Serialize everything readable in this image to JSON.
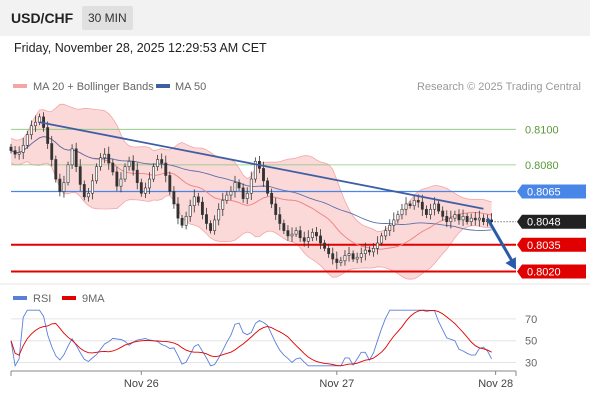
{
  "header": {
    "symbol": "USD/CHF",
    "timeframe": "30 MIN",
    "datetime": "Friday, November 28, 2025 12:29:53 AM CET"
  },
  "colors": {
    "candle": "#333333",
    "bollinger_fill": "#fbd9d9",
    "bollinger_line": "#f4a6a6",
    "ma20": "#f07f7f",
    "ma50": "#5b6fa8",
    "trendline": "#3f5fa4",
    "resistance": "#8ac47a",
    "pivot": "#4a86e8",
    "support": "#e00000",
    "forecast_arrow": "#2a5aa8",
    "rsi": "#5b7fd8",
    "rsi_ma": "#e00000"
  },
  "chart_data": [
    {
      "type": "candlestick",
      "title": "",
      "legend": [
        {
          "name": "MA 20 + Bollinger Bands",
          "color": "#f4a6a6"
        },
        {
          "name": "MA 50",
          "color": "#3f5fa4"
        }
      ],
      "legend_position": "top-left",
      "copyright": "Research © 2025 Trading Central",
      "ylim": [
        0.80135,
        0.81165
      ],
      "x_range": [
        0,
        124
      ],
      "x_ticks": [
        {
          "x": 32,
          "label": "Nov 26"
        },
        {
          "x": 80,
          "label": "Nov 27"
        },
        {
          "x": 119,
          "label": "Nov 28"
        }
      ],
      "closes": [
        0.8088,
        0.8086,
        0.8087,
        0.8091,
        0.8097,
        0.8102,
        0.8104,
        0.8107,
        0.8101,
        0.8092,
        0.8083,
        0.8072,
        0.8065,
        0.807,
        0.808,
        0.8089,
        0.8079,
        0.8069,
        0.8062,
        0.8064,
        0.8071,
        0.8079,
        0.8084,
        0.8086,
        0.8081,
        0.8076,
        0.8068,
        0.8072,
        0.8079,
        0.8082,
        0.8077,
        0.807,
        0.8064,
        0.8067,
        0.8072,
        0.8079,
        0.8083,
        0.8081,
        0.8074,
        0.8065,
        0.8058,
        0.805,
        0.8046,
        0.8051,
        0.8057,
        0.8062,
        0.8059,
        0.8052,
        0.8047,
        0.8043,
        0.8049,
        0.8055,
        0.806,
        0.8063,
        0.8065,
        0.807,
        0.8067,
        0.8061,
        0.8064,
        0.8072,
        0.8082,
        0.8078,
        0.8071,
        0.8064,
        0.8058,
        0.8052,
        0.8047,
        0.8043,
        0.804,
        0.8041,
        0.8043,
        0.8039,
        0.8037,
        0.8039,
        0.8042,
        0.804,
        0.8036,
        0.8033,
        0.803,
        0.8027,
        0.8025,
        0.8026,
        0.8029,
        0.803,
        0.8027,
        0.8028,
        0.803,
        0.8032,
        0.8031,
        0.8033,
        0.8036,
        0.804,
        0.8043,
        0.8046,
        0.8049,
        0.8052,
        0.8055,
        0.8058,
        0.8057,
        0.806,
        0.8059,
        0.8055,
        0.8052,
        0.8055,
        0.8058,
        0.8054,
        0.8051,
        0.8048,
        0.805,
        0.8052,
        0.8049,
        0.8051,
        0.8048,
        0.805,
        0.8049,
        0.805,
        0.8048,
        0.8049,
        0.8048
      ],
      "trendline": {
        "x1": 7,
        "y1": 0.8104,
        "x2": 116,
        "y2": 0.80553
      },
      "forecast_arrow": {
        "x1": 117,
        "y1": 0.80497,
        "x2": 124,
        "y2": 0.8021
      },
      "levels": [
        {
          "value": 0.81,
          "label": "0.8100",
          "role": "resistance"
        },
        {
          "value": 0.808,
          "label": "0.8080",
          "role": "resistance"
        },
        {
          "value": 0.8065,
          "label": "0.8065",
          "role": "pivot"
        },
        {
          "value": 0.8048,
          "label": "0.8048",
          "role": "last"
        },
        {
          "value": 0.8035,
          "label": "0.8035",
          "role": "support"
        },
        {
          "value": 0.802,
          "label": "0.8020",
          "role": "support"
        }
      ]
    },
    {
      "type": "line",
      "title": "",
      "legend": [
        {
          "name": "RSI",
          "color": "#5b7fd8"
        },
        {
          "name": "9MA",
          "color": "#e00000"
        }
      ],
      "ylim": [
        25,
        80
      ],
      "y_ticks": [
        {
          "value": 70,
          "label": "70"
        },
        {
          "value": 50,
          "label": "50"
        },
        {
          "value": 30,
          "label": "30"
        }
      ]
    }
  ]
}
